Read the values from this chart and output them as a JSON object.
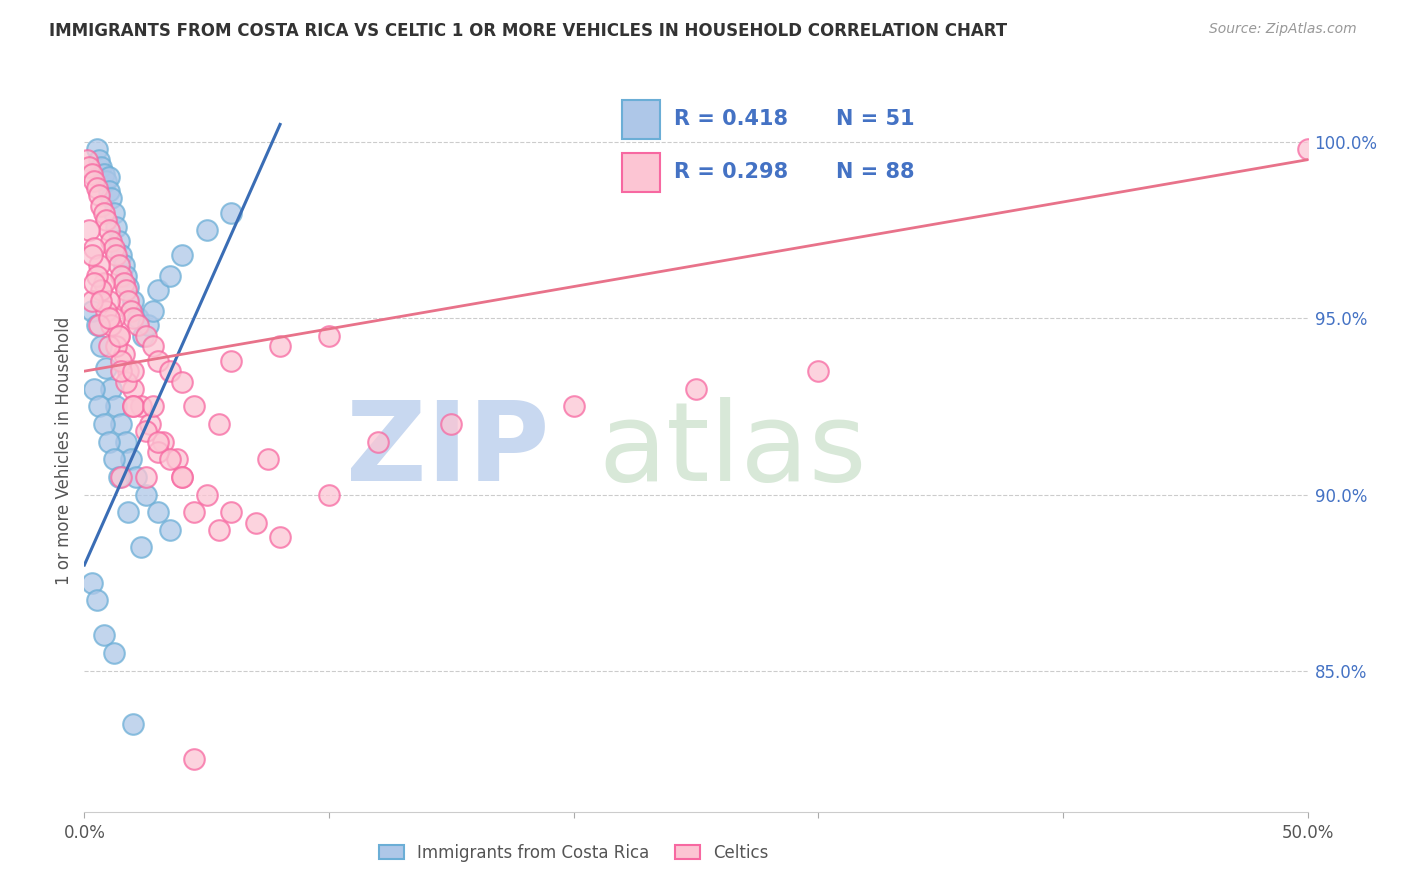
{
  "title": "IMMIGRANTS FROM COSTA RICA VS CELTIC 1 OR MORE VEHICLES IN HOUSEHOLD CORRELATION CHART",
  "source": "Source: ZipAtlas.com",
  "ylabel": "1 or more Vehicles in Household",
  "xlim": [
    0.0,
    50.0
  ],
  "ylim": [
    81.0,
    101.5
  ],
  "y_ticks_right": [
    85.0,
    90.0,
    95.0,
    100.0
  ],
  "watermark_zip": "ZIP",
  "watermark_atlas": "atlas",
  "legend_r1": "R = 0.418",
  "legend_n1": "N = 51",
  "legend_r2": "R = 0.298",
  "legend_n2": "N = 88",
  "blue_scatter_color_face": "#aec7e8",
  "blue_scatter_color_edge": "#6baed6",
  "pink_scatter_color_face": "#fcc5d3",
  "pink_scatter_color_edge": "#f768a1",
  "blue_line_color": "#3a6db5",
  "pink_line_color": "#e8728a",
  "background_color": "#ffffff",
  "grid_color": "#cccccc",
  "right_axis_color": "#4472c4",
  "title_color": "#333333",
  "source_color": "#999999",
  "ylabel_color": "#555555",
  "watermark_zip_color": "#c8d8f0",
  "watermark_atlas_color": "#d8e8d8",
  "blue_x": [
    0.5,
    0.6,
    0.7,
    0.8,
    0.9,
    1.0,
    1.0,
    1.1,
    1.2,
    1.3,
    1.4,
    1.5,
    1.6,
    1.7,
    1.8,
    2.0,
    2.2,
    2.4,
    2.6,
    2.8,
    3.0,
    3.5,
    4.0,
    5.0,
    6.0,
    0.3,
    0.5,
    0.7,
    0.9,
    1.1,
    1.3,
    1.5,
    1.7,
    1.9,
    2.1,
    2.5,
    3.0,
    3.5,
    0.4,
    0.6,
    0.8,
    1.0,
    1.2,
    1.4,
    1.8,
    2.3,
    0.3,
    0.5,
    0.8,
    1.2,
    2.0
  ],
  "blue_y": [
    99.8,
    99.5,
    99.3,
    99.1,
    98.9,
    99.0,
    98.6,
    98.4,
    98.0,
    97.6,
    97.2,
    96.8,
    96.5,
    96.2,
    95.9,
    95.5,
    95.0,
    94.5,
    94.8,
    95.2,
    95.8,
    96.2,
    96.8,
    97.5,
    98.0,
    95.2,
    94.8,
    94.2,
    93.6,
    93.0,
    92.5,
    92.0,
    91.5,
    91.0,
    90.5,
    90.0,
    89.5,
    89.0,
    93.0,
    92.5,
    92.0,
    91.5,
    91.0,
    90.5,
    89.5,
    88.5,
    87.5,
    87.0,
    86.0,
    85.5,
    83.5
  ],
  "pink_x": [
    0.1,
    0.2,
    0.3,
    0.4,
    0.5,
    0.6,
    0.7,
    0.8,
    0.9,
    1.0,
    1.1,
    1.2,
    1.3,
    1.4,
    1.5,
    1.6,
    1.7,
    1.8,
    1.9,
    2.0,
    2.2,
    2.5,
    2.8,
    3.0,
    3.5,
    4.0,
    0.2,
    0.4,
    0.6,
    0.8,
    1.0,
    1.2,
    1.4,
    1.6,
    1.8,
    2.0,
    2.3,
    2.7,
    3.2,
    3.8,
    0.3,
    0.5,
    0.7,
    0.9,
    1.1,
    1.3,
    1.5,
    1.7,
    2.0,
    2.5,
    3.0,
    4.0,
    5.0,
    6.0,
    7.0,
    8.0,
    4.5,
    5.5,
    7.5,
    10.0,
    12.0,
    15.0,
    20.0,
    25.0,
    30.0,
    6.0,
    8.0,
    10.0,
    1.5,
    2.5,
    3.5,
    4.5,
    5.5,
    0.3,
    0.6,
    1.0,
    1.5,
    2.0,
    3.0,
    4.0,
    0.4,
    0.7,
    1.0,
    1.4,
    2.0,
    2.8,
    4.5,
    50.0
  ],
  "pink_y": [
    99.5,
    99.3,
    99.1,
    98.9,
    98.7,
    98.5,
    98.2,
    98.0,
    97.8,
    97.5,
    97.2,
    97.0,
    96.8,
    96.5,
    96.2,
    96.0,
    95.8,
    95.5,
    95.2,
    95.0,
    94.8,
    94.5,
    94.2,
    93.8,
    93.5,
    93.2,
    97.5,
    97.0,
    96.5,
    96.0,
    95.5,
    95.0,
    94.5,
    94.0,
    93.5,
    93.0,
    92.5,
    92.0,
    91.5,
    91.0,
    96.8,
    96.2,
    95.8,
    95.2,
    94.8,
    94.2,
    93.8,
    93.2,
    92.5,
    91.8,
    91.2,
    90.5,
    90.0,
    89.5,
    89.2,
    88.8,
    92.5,
    92.0,
    91.0,
    90.0,
    91.5,
    92.0,
    92.5,
    93.0,
    93.5,
    93.8,
    94.2,
    94.5,
    90.5,
    90.5,
    91.0,
    89.5,
    89.0,
    95.5,
    94.8,
    94.2,
    93.5,
    92.5,
    91.5,
    90.5,
    96.0,
    95.5,
    95.0,
    94.5,
    93.5,
    92.5,
    82.5,
    99.8
  ],
  "blue_trend": [
    0.0,
    8.0,
    88.0,
    100.5
  ],
  "pink_trend": [
    0.0,
    50.0,
    93.5,
    99.5
  ]
}
